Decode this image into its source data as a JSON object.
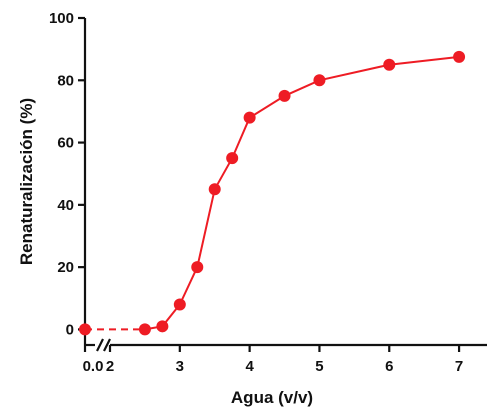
{
  "chart_data": {
    "type": "line",
    "title": "",
    "xlabel": "Agua (v/v)",
    "ylabel": "Renaturalización (%)",
    "x_segments": [
      [
        0,
        0.15
      ],
      [
        2,
        7.4
      ]
    ],
    "x_ticks": [
      0,
      2,
      3,
      4,
      5,
      6,
      7
    ],
    "x_tick_labels": [
      "0.0",
      "2",
      "3",
      "4",
      "5",
      "6",
      "7"
    ],
    "y_ticks": [
      0,
      20,
      40,
      60,
      80,
      100
    ],
    "y_tick_labels": [
      "0",
      "20",
      "40",
      "60",
      "80",
      "100"
    ],
    "ylim": [
      -5,
      100
    ],
    "axis_break": "x",
    "grid": false,
    "series": [
      {
        "color": "#ee1c24",
        "points": [
          {
            "x": 0,
            "y": 0
          },
          {
            "x": 2.5,
            "y": 0
          },
          {
            "x": 2.75,
            "y": 1
          },
          {
            "x": 3,
            "y": 8
          },
          {
            "x": 3.25,
            "y": 20
          },
          {
            "x": 3.5,
            "y": 45
          },
          {
            "x": 3.75,
            "y": 55
          },
          {
            "x": 4,
            "y": 68
          },
          {
            "x": 4.5,
            "y": 75
          },
          {
            "x": 5,
            "y": 80
          },
          {
            "x": 6,
            "y": 85
          },
          {
            "x": 7,
            "y": 87.5
          }
        ]
      }
    ]
  }
}
